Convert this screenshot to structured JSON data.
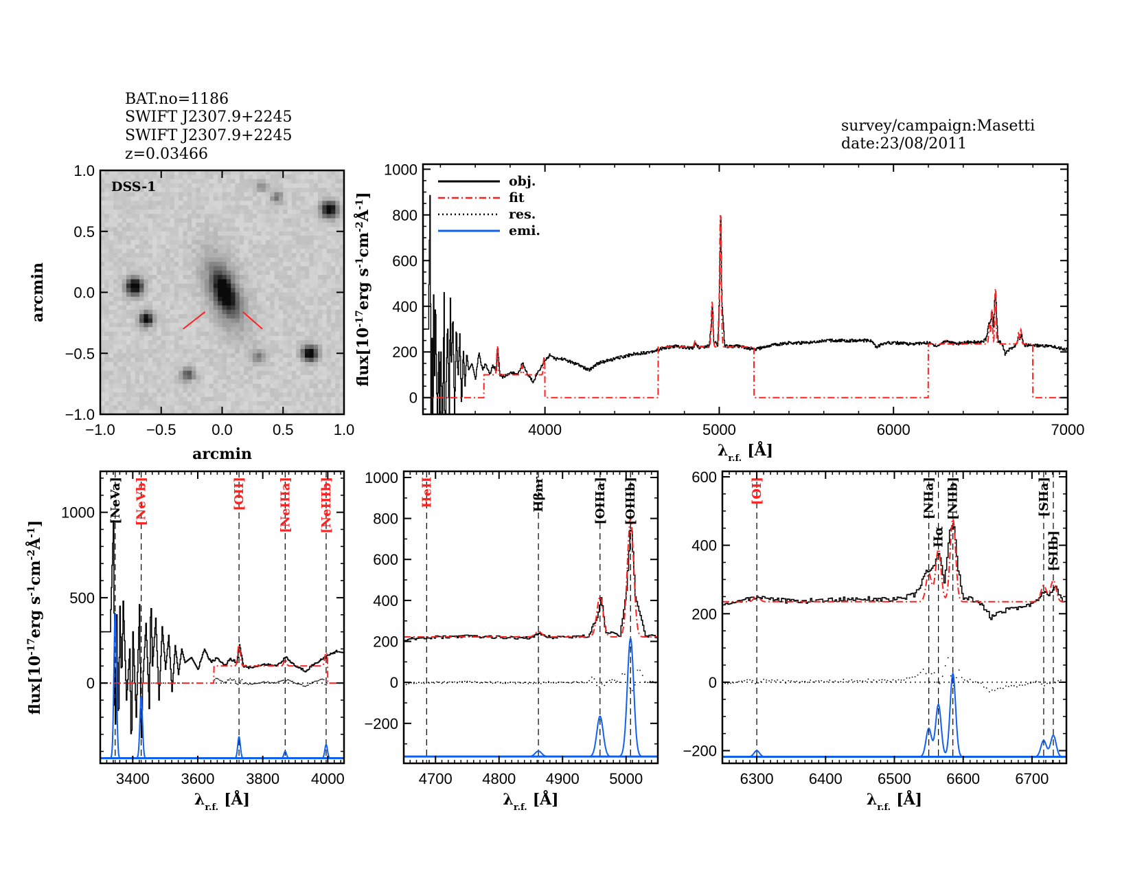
{
  "header": {
    "bat": "BAT.no=1186",
    "name1": "SWIFT J2307.9+2245",
    "name2": "SWIFT J2307.9+2245",
    "redshift": "z=0.03466",
    "survey": "survey/campaign:Masetti",
    "date": "date:23/08/2011"
  },
  "colors": {
    "obj": "#000000",
    "fit": "#ff2020",
    "res": "#000000",
    "emi": "#1060f0",
    "marker": "#ff2020"
  },
  "axis_text": {
    "arcmin": "arcmin",
    "lambda": "λ",
    "lambda_sub": "r.f.",
    "lambda_unit": "[Å]",
    "flux_parts": [
      {
        "t": "flux[10",
        "sup": false
      },
      {
        "t": "-17",
        "sup": true
      },
      {
        "t": "erg s",
        "sup": false
      },
      {
        "t": "-1",
        "sup": true
      },
      {
        "t": "cm",
        "sup": false
      },
      {
        "t": "-2",
        "sup": true
      },
      {
        "t": "Å",
        "sup": false
      },
      {
        "t": "-1",
        "sup": true
      },
      {
        "t": "]",
        "sup": false
      }
    ]
  },
  "chart_data": [
    {
      "type": "image",
      "id": "dss",
      "label": "DSS-1",
      "xlabel": "arcmin",
      "ylabel": "arcmin",
      "xlim": [
        -1,
        1
      ],
      "ylim": [
        -1,
        1
      ],
      "xticks": [
        {
          "v": -1,
          "t": "−1.0"
        },
        {
          "v": -0.5,
          "t": "−0.5"
        },
        {
          "v": 0,
          "t": "0.0"
        },
        {
          "v": 0.5,
          "t": "0.5"
        },
        {
          "v": 1,
          "t": "1.0"
        }
      ],
      "yticks": [
        {
          "v": -1,
          "t": "−1.0"
        },
        {
          "v": -0.5,
          "t": "−0.5"
        },
        {
          "v": 0,
          "t": "0.0"
        },
        {
          "v": 0.5,
          "t": "0.5"
        },
        {
          "v": 1,
          "t": "1.0"
        }
      ],
      "colormap": "grayscale"
    },
    {
      "type": "line",
      "id": "full",
      "xlim": [
        3300,
        7000
      ],
      "ylim": [
        -73,
        1022
      ],
      "xticks": [
        {
          "v": 4000,
          "t": "4000"
        },
        {
          "v": 5000,
          "t": "5000"
        },
        {
          "v": 6000,
          "t": "6000"
        },
        {
          "v": 7000,
          "t": "7000"
        }
      ],
      "yticks": [
        {
          "v": 0,
          "t": "0"
        },
        {
          "v": 200,
          "t": "200"
        },
        {
          "v": 400,
          "t": "400"
        },
        {
          "v": 600,
          "t": "600"
        },
        {
          "v": 800,
          "t": "800"
        },
        {
          "v": 1000,
          "t": "1000"
        }
      ],
      "xminor": 200,
      "yminor": 50,
      "legend": [
        {
          "name": "obj.",
          "style": "solid",
          "color": "#000000"
        },
        {
          "name": "fit",
          "style": "dashdot",
          "color": "#ff2020"
        },
        {
          "name": "res.",
          "style": "dotted",
          "color": "#000000"
        },
        {
          "name": "emi.",
          "style": "solid",
          "color": "#1060f0"
        }
      ],
      "legend_position": "top-left",
      "show_res": false,
      "show_emi": false
    },
    {
      "type": "line",
      "id": "ne",
      "xlim": [
        3300,
        4050
      ],
      "ylim": [
        -470,
        1240
      ],
      "xticks": [
        {
          "v": 3400,
          "t": "3400"
        },
        {
          "v": 3600,
          "t": "3600"
        },
        {
          "v": 3800,
          "t": "3800"
        },
        {
          "v": 4000,
          "t": "4000"
        }
      ],
      "yticks": [
        {
          "v": 0,
          "t": "0"
        },
        {
          "v": 500,
          "t": "500"
        },
        {
          "v": 1000,
          "t": "1000"
        }
      ],
      "xminor": 20,
      "yminor": 100,
      "emi_offset": -440,
      "lines": [
        {
          "label": "[NeVa]",
          "wavelength": 3346,
          "color": "#000000"
        },
        {
          "label": "[NeVb]",
          "wavelength": 3426,
          "color": "#ff2020"
        },
        {
          "label": "[OII]",
          "wavelength": 3727,
          "color": "#ff2020"
        },
        {
          "label": "[NeIIIa]",
          "wavelength": 3869,
          "color": "#ff2020"
        },
        {
          "label": "[NeIIIb]",
          "wavelength": 3995,
          "color": "#ff2020"
        }
      ],
      "show_res": true,
      "show_emi": true
    },
    {
      "type": "line",
      "id": "hb",
      "xlim": [
        4650,
        5050
      ],
      "ylim": [
        -395,
        1030
      ],
      "xticks": [
        {
          "v": 4700,
          "t": "4700"
        },
        {
          "v": 4800,
          "t": "4800"
        },
        {
          "v": 4900,
          "t": "4900"
        },
        {
          "v": 5000,
          "t": "5000"
        }
      ],
      "yticks": [
        {
          "v": -200,
          "t": "−200"
        },
        {
          "v": 0,
          "t": "0"
        },
        {
          "v": 200,
          "t": "200"
        },
        {
          "v": 400,
          "t": "400"
        },
        {
          "v": 600,
          "t": "600"
        },
        {
          "v": 800,
          "t": "800"
        },
        {
          "v": 1000,
          "t": "1000"
        }
      ],
      "xminor": 10,
      "yminor": 100,
      "emi_offset": -362,
      "lines": [
        {
          "label": "HeII",
          "wavelength": 4686,
          "color": "#ff2020"
        },
        {
          "label": "Hβnr",
          "wavelength": 4862,
          "color": "#000000"
        },
        {
          "label": "[OIIIa]",
          "wavelength": 4959,
          "color": "#000000"
        },
        {
          "label": "[OIIIb]",
          "wavelength": 5007,
          "color": "#000000"
        }
      ],
      "show_res": true,
      "show_emi": true
    },
    {
      "type": "line",
      "id": "ha",
      "xlim": [
        6250,
        6750
      ],
      "ylim": [
        -237,
        616
      ],
      "xticks": [
        {
          "v": 6300,
          "t": "6300"
        },
        {
          "v": 6400,
          "t": "6400"
        },
        {
          "v": 6500,
          "t": "6500"
        },
        {
          "v": 6600,
          "t": "6600"
        },
        {
          "v": 6700,
          "t": "6700"
        }
      ],
      "yticks": [
        {
          "v": -200,
          "t": "−200"
        },
        {
          "v": 0,
          "t": "0"
        },
        {
          "v": 200,
          "t": "200"
        },
        {
          "v": 400,
          "t": "400"
        },
        {
          "v": 600,
          "t": "600"
        }
      ],
      "xminor": 10,
      "yminor": 50,
      "emi_offset": -218,
      "lines": [
        {
          "label": "[OI]",
          "wavelength": 6300,
          "color": "#ff2020"
        },
        {
          "label": "[NIIa]",
          "wavelength": 6550,
          "color": "#000000"
        },
        {
          "label": "Hα",
          "wavelength": 6564,
          "color": "#000000"
        },
        {
          "label": "[NIIb]",
          "wavelength": 6585,
          "color": "#000000"
        },
        {
          "label": "[SIIa]",
          "wavelength": 6717,
          "color": "#000000"
        },
        {
          "label": "[SIIb]",
          "wavelength": 6731,
          "color": "#000000"
        }
      ],
      "show_res": true,
      "show_emi": true
    }
  ],
  "spectrum": {
    "obj": [
      [
        3330,
        300
      ],
      [
        3340,
        950
      ],
      [
        3345,
        -400
      ],
      [
        3350,
        400
      ],
      [
        3355,
        -300
      ],
      [
        3360,
        450
      ],
      [
        3365,
        0
      ],
      [
        3370,
        480
      ],
      [
        3380,
        -100
      ],
      [
        3390,
        200
      ],
      [
        3395,
        -420
      ],
      [
        3400,
        300
      ],
      [
        3410,
        -200
      ],
      [
        3420,
        460
      ],
      [
        3425,
        -400
      ],
      [
        3430,
        0
      ],
      [
        3440,
        350
      ],
      [
        3450,
        -150
      ],
      [
        3455,
        520
      ],
      [
        3460,
        100
      ],
      [
        3470,
        380
      ],
      [
        3480,
        -100
      ],
      [
        3490,
        330
      ],
      [
        3500,
        80
      ],
      [
        3510,
        280
      ],
      [
        3520,
        -50
      ],
      [
        3530,
        220
      ],
      [
        3540,
        50
      ],
      [
        3550,
        200
      ],
      [
        3560,
        120
      ],
      [
        3580,
        150
      ],
      [
        3600,
        80
      ],
      [
        3620,
        200
      ],
      [
        3640,
        120
      ],
      [
        3660,
        150
      ],
      [
        3680,
        100
      ],
      [
        3700,
        140
      ],
      [
        3720,
        120
      ],
      [
        3727,
        230
      ],
      [
        3740,
        100
      ],
      [
        3760,
        90
      ],
      [
        3800,
        110
      ],
      [
        3840,
        100
      ],
      [
        3870,
        150
      ],
      [
        3900,
        100
      ],
      [
        3930,
        70
      ],
      [
        3950,
        100
      ],
      [
        3980,
        140
      ],
      [
        4000,
        160
      ],
      [
        4030,
        190
      ],
      [
        4050,
        170
      ],
      [
        4100,
        170
      ],
      [
        4200,
        140
      ],
      [
        4250,
        120
      ],
      [
        4300,
        150
      ],
      [
        4400,
        170
      ],
      [
        4500,
        190
      ],
      [
        4600,
        200
      ],
      [
        4700,
        220
      ],
      [
        4750,
        225
      ],
      [
        4800,
        220
      ],
      [
        4850,
        215
      ],
      [
        4862,
        240
      ],
      [
        4880,
        220
      ],
      [
        4940,
        225
      ],
      [
        4955,
        330
      ],
      [
        4960,
        420
      ],
      [
        4967,
        250
      ],
      [
        4990,
        230
      ],
      [
        5000,
        450
      ],
      [
        5007,
        790
      ],
      [
        5014,
        420
      ],
      [
        5030,
        225
      ],
      [
        5100,
        225
      ],
      [
        5200,
        210
      ],
      [
        5300,
        230
      ],
      [
        5400,
        240
      ],
      [
        5500,
        240
      ],
      [
        5600,
        250
      ],
      [
        5700,
        250
      ],
      [
        5800,
        250
      ],
      [
        5870,
        250
      ],
      [
        5900,
        220
      ],
      [
        5950,
        240
      ],
      [
        6000,
        240
      ],
      [
        6100,
        235
      ],
      [
        6200,
        240
      ],
      [
        6250,
        225
      ],
      [
        6300,
        250
      ],
      [
        6350,
        235
      ],
      [
        6400,
        240
      ],
      [
        6450,
        245
      ],
      [
        6500,
        240
      ],
      [
        6530,
        255
      ],
      [
        6545,
        320
      ],
      [
        6555,
        330
      ],
      [
        6564,
        380
      ],
      [
        6572,
        290
      ],
      [
        6580,
        440
      ],
      [
        6586,
        460
      ],
      [
        6592,
        330
      ],
      [
        6600,
        245
      ],
      [
        6620,
        240
      ],
      [
        6640,
        190
      ],
      [
        6660,
        210
      ],
      [
        6700,
        225
      ],
      [
        6718,
        265
      ],
      [
        6725,
        255
      ],
      [
        6733,
        280
      ],
      [
        6745,
        230
      ],
      [
        6800,
        230
      ],
      [
        6900,
        225
      ],
      [
        7000,
        210
      ]
    ],
    "fit_continuum": [
      [
        3300,
        3650,
        0
      ],
      [
        3650,
        4000,
        100
      ],
      [
        4000,
        4650,
        0
      ],
      [
        4650,
        5200,
        222
      ],
      [
        5200,
        6200,
        0
      ],
      [
        6200,
        6800,
        235
      ],
      [
        6800,
        7000,
        0
      ]
    ],
    "emission_lines": [
      {
        "wavelength": 3346,
        "amplitude": 850,
        "sigma": 4
      },
      {
        "wavelength": 3426,
        "amplitude": 360,
        "sigma": 4
      },
      {
        "wavelength": 3727,
        "amplitude": 125,
        "sigma": 4
      },
      {
        "wavelength": 3869,
        "amplitude": 40,
        "sigma": 4
      },
      {
        "wavelength": 3995,
        "amplitude": 80,
        "sigma": 4
      },
      {
        "wavelength": 4862,
        "amplitude": 27,
        "sigma": 5
      },
      {
        "wavelength": 4959,
        "amplitude": 197,
        "sigma": 5
      },
      {
        "wavelength": 5007,
        "amplitude": 577,
        "sigma": 5
      },
      {
        "wavelength": 6300,
        "amplitude": 18,
        "sigma": 4
      },
      {
        "wavelength": 6550,
        "amplitude": 83,
        "sigma": 4
      },
      {
        "wavelength": 6564,
        "amplitude": 153,
        "sigma": 4
      },
      {
        "wavelength": 6585,
        "amplitude": 243,
        "sigma": 4
      },
      {
        "wavelength": 6717,
        "amplitude": 48,
        "sigma": 4
      },
      {
        "wavelength": 6731,
        "amplitude": 63,
        "sigma": 4
      }
    ]
  }
}
